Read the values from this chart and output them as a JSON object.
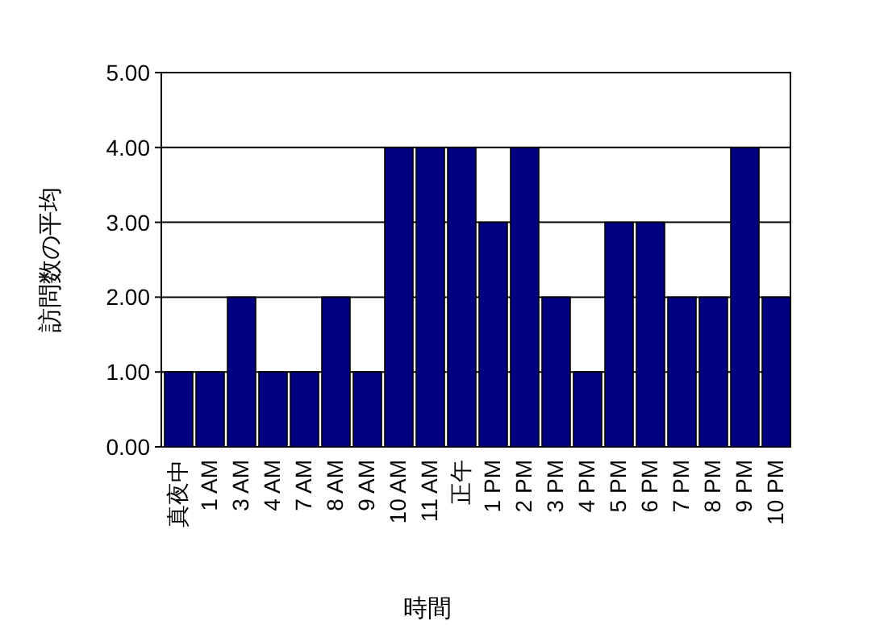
{
  "chart_data": {
    "type": "bar",
    "xlabel": "時間",
    "ylabel": "訪問数の平均",
    "categories": [
      "真夜中",
      "1 AM",
      "3 AM",
      "4 AM",
      "7 AM",
      "8 AM",
      "9 AM",
      "10 AM",
      "11 AM",
      "正午",
      "1 PM",
      "2 PM",
      "3 PM",
      "4 PM",
      "5 PM",
      "6 PM",
      "7 PM",
      "8 PM",
      "9 PM",
      "10 PM"
    ],
    "values": [
      1,
      1,
      2,
      1,
      1,
      2,
      1,
      4,
      4,
      4,
      3,
      4,
      2,
      1,
      3,
      3,
      2,
      2,
      4,
      2
    ],
    "color": "#000080",
    "ylim": [
      0,
      5
    ],
    "yticks": [
      {
        "value": 0,
        "label": "0.00"
      },
      {
        "value": 1,
        "label": "1.00"
      },
      {
        "value": 2,
        "label": "2.00"
      },
      {
        "value": 3,
        "label": "3.00"
      },
      {
        "value": 4,
        "label": "4.00"
      },
      {
        "value": 5,
        "label": "5.00"
      }
    ],
    "grid": "y"
  }
}
